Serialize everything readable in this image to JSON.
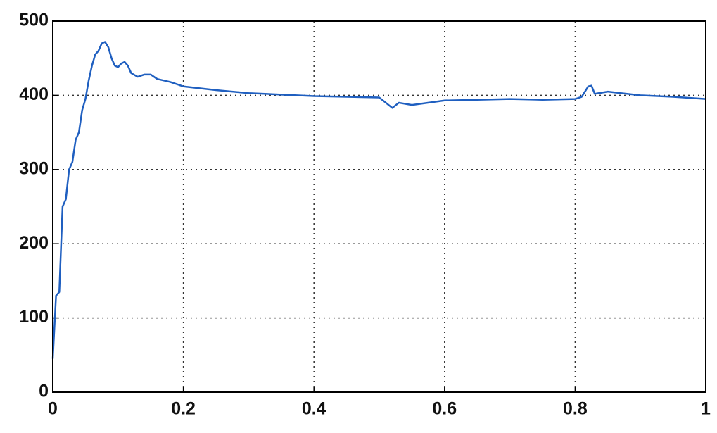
{
  "chart_data": {
    "type": "line",
    "x": [
      0,
      0.005,
      0.01,
      0.015,
      0.02,
      0.025,
      0.03,
      0.035,
      0.04,
      0.045,
      0.05,
      0.055,
      0.06,
      0.065,
      0.07,
      0.075,
      0.08,
      0.085,
      0.09,
      0.095,
      0.1,
      0.105,
      0.11,
      0.115,
      0.12,
      0.13,
      0.14,
      0.15,
      0.16,
      0.18,
      0.2,
      0.25,
      0.3,
      0.35,
      0.4,
      0.45,
      0.5,
      0.51,
      0.52,
      0.53,
      0.55,
      0.6,
      0.65,
      0.7,
      0.75,
      0.8,
      0.81,
      0.82,
      0.825,
      0.83,
      0.85,
      0.9,
      0.95,
      1
    ],
    "series": [
      {
        "color": "#1f5fc0",
        "values": [
          45,
          130,
          135,
          250,
          260,
          300,
          310,
          340,
          350,
          380,
          395,
          420,
          440,
          455,
          460,
          470,
          472,
          465,
          450,
          440,
          438,
          443,
          445,
          440,
          430,
          425,
          428,
          428,
          422,
          418,
          412,
          407,
          403,
          401,
          399,
          398,
          397,
          390,
          383,
          390,
          387,
          393,
          394,
          395,
          394,
          395,
          398,
          412,
          413,
          402,
          405,
          400,
          398,
          395
        ]
      }
    ],
    "xlim": [
      0,
      1
    ],
    "xticks": [
      0,
      0.2,
      0.4,
      0.6,
      0.8,
      1
    ],
    "ylim": [
      0,
      500
    ],
    "yticks": [
      0,
      100,
      200,
      300,
      400,
      500
    ],
    "grid": true
  }
}
